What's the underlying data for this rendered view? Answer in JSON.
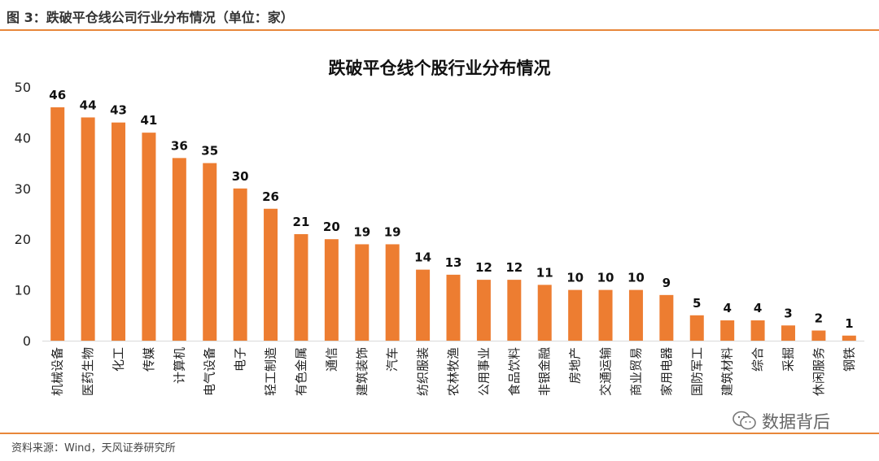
{
  "figure_caption": "图 3：跌破平仓线公司行业分布情况（单位：家）",
  "source_note": "资料来源：Wind，天风证券研究所",
  "watermark_text": "数据背后",
  "watermark_icon": "wechat-icon",
  "bar_color": "#ed7d31",
  "accent_color": "#e8873a",
  "chart_data": {
    "type": "bar",
    "title": "跌破平仓线个股行业分布情况",
    "xlabel": "",
    "ylabel": "",
    "ylim": [
      0,
      50
    ],
    "yticks": [
      0,
      10,
      20,
      30,
      40,
      50
    ],
    "grid": false,
    "legend": "none",
    "categories": [
      "机械设备",
      "医药生物",
      "化工",
      "传媒",
      "计算机",
      "电气设备",
      "电子",
      "轻工制造",
      "有色金属",
      "通信",
      "建筑装饰",
      "汽车",
      "纺织服装",
      "农林牧渔",
      "公用事业",
      "食品饮料",
      "非银金融",
      "房地产",
      "交通运输",
      "商业贸易",
      "家用电器",
      "国防军工",
      "建筑材料",
      "综合",
      "采掘",
      "休闲服务",
      "钢铁"
    ],
    "values": [
      46,
      44,
      43,
      41,
      36,
      35,
      30,
      26,
      21,
      20,
      19,
      19,
      14,
      13,
      12,
      12,
      11,
      10,
      10,
      10,
      9,
      5,
      4,
      4,
      3,
      2,
      1
    ]
  }
}
